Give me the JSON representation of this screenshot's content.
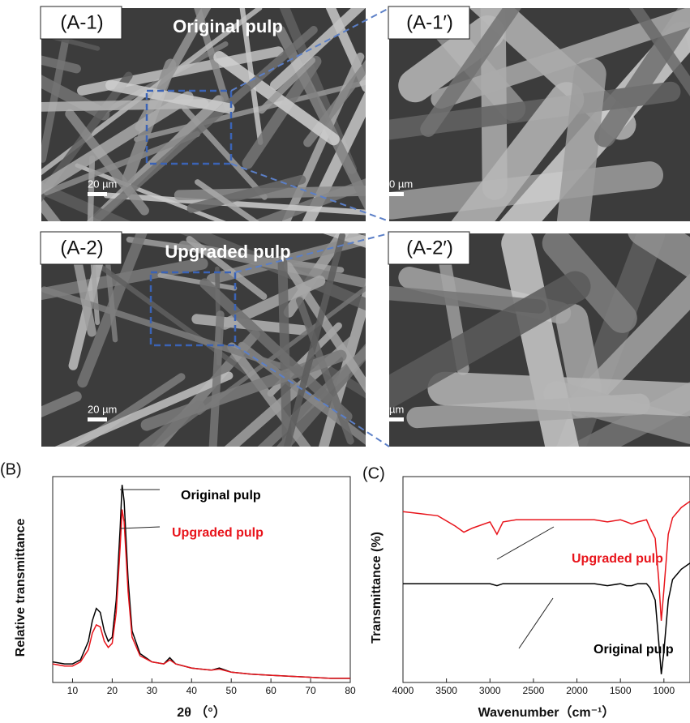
{
  "panels": [
    {
      "label": "(A-1)",
      "title": "Original pulp",
      "scale_bar": "20 µm"
    },
    {
      "label": "(A-1′)",
      "scale_bar": "0 µm"
    },
    {
      "label": "(A-2)",
      "title": "Upgraded pulp",
      "scale_bar": "20 µm"
    },
    {
      "label": "(A-2′)",
      "scale_bar": "µm"
    }
  ],
  "chart_data": [
    {
      "type": "line",
      "panel_label": "(B)",
      "x_label": "2θ （°）",
      "y_label": "Relative transmittance",
      "xlim": [
        5,
        80
      ],
      "xticks": [
        10,
        20,
        30,
        40,
        50,
        60,
        70,
        80
      ],
      "ylim": [
        0,
        100
      ],
      "x": [
        5,
        8,
        10,
        12,
        14,
        15,
        16,
        17,
        18,
        19,
        20,
        21,
        22,
        22.5,
        23,
        24,
        25,
        27,
        30,
        33,
        34.5,
        36,
        40,
        45,
        47,
        50,
        55,
        60,
        65,
        70,
        75,
        80
      ],
      "series": [
        {
          "name": "Original pulp",
          "color": "#000000",
          "values": [
            10,
            9,
            9,
            11,
            20,
            30,
            36,
            34,
            25,
            20,
            22,
            40,
            75,
            96,
            88,
            50,
            25,
            14,
            10,
            9,
            12,
            9,
            7,
            6,
            7,
            5,
            4,
            3.5,
            3,
            2.5,
            2,
            2
          ]
        },
        {
          "name": "Upgraded pulp",
          "color": "#e8141b",
          "values": [
            9,
            8,
            8,
            10,
            16,
            24,
            28,
            27,
            20,
            17,
            19,
            34,
            66,
            84,
            78,
            44,
            22,
            13,
            10,
            9,
            11,
            9,
            7,
            6,
            6.5,
            5,
            4,
            3.5,
            3,
            2.5,
            2,
            2
          ]
        }
      ]
    },
    {
      "type": "line",
      "panel_label": "(C)",
      "x_label": "Wavenumber（cm⁻¹）",
      "y_label": "Transmittance (%)",
      "xlim": [
        4000,
        700
      ],
      "xticks": [
        4000,
        3500,
        3000,
        2500,
        2000,
        1500,
        1000
      ],
      "ylim": [
        0,
        100
      ],
      "x": [
        4000,
        3800,
        3600,
        3400,
        3300,
        3200,
        3000,
        2920,
        2850,
        2700,
        2500,
        2300,
        2100,
        2000,
        1800,
        1650,
        1500,
        1430,
        1370,
        1300,
        1200,
        1160,
        1100,
        1060,
        1030,
        1000,
        950,
        900,
        800,
        700
      ],
      "series": [
        {
          "name": "Upgraded pulp",
          "color": "#e8141b",
          "values": [
            83,
            82,
            81,
            76,
            73,
            75,
            78,
            72,
            78,
            79,
            79,
            79,
            79,
            79,
            79,
            78,
            79,
            78,
            77,
            78,
            79,
            75,
            70,
            50,
            30,
            45,
            72,
            80,
            85,
            88
          ]
        },
        {
          "name": "Original pulp",
          "color": "#000000",
          "values": [
            48,
            48,
            48,
            48,
            48,
            48,
            48,
            47,
            48,
            48,
            48,
            48,
            48,
            48,
            48,
            47,
            48,
            47,
            47,
            48,
            48,
            46,
            40,
            20,
            4,
            15,
            40,
            50,
            55,
            58
          ]
        }
      ]
    }
  ]
}
